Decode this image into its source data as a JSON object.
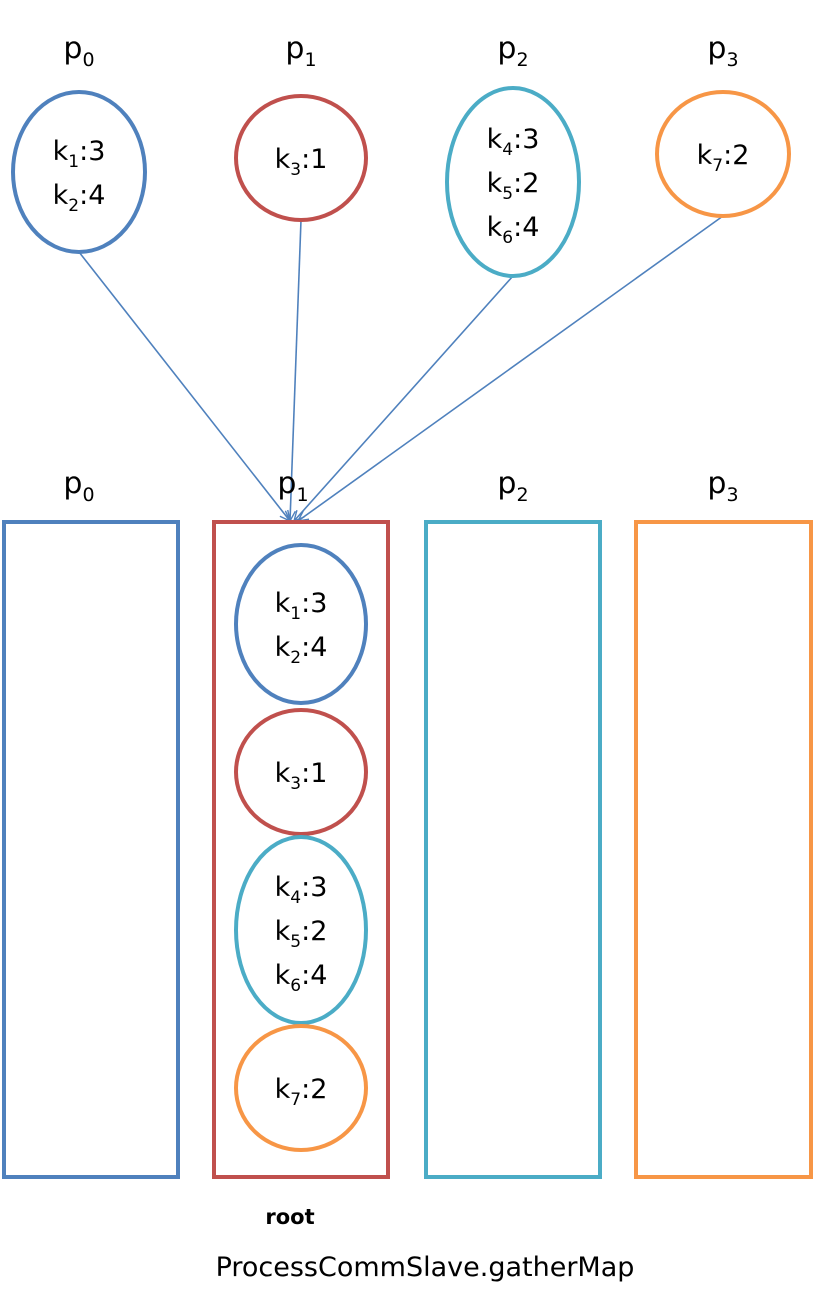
{
  "colors": {
    "p0": "#4f81bd",
    "p1": "#c0504d",
    "p2": "#4bacc6",
    "p3": "#f79646",
    "arrow": "#4f81bd"
  },
  "top_row": [
    {
      "label": "p",
      "sub": "0",
      "entries": [
        {
          "k": "1",
          "v": "3"
        },
        {
          "k": "2",
          "v": "4"
        }
      ]
    },
    {
      "label": "p",
      "sub": "1",
      "entries": [
        {
          "k": "3",
          "v": "1"
        }
      ]
    },
    {
      "label": "p",
      "sub": "2",
      "entries": [
        {
          "k": "4",
          "v": "3"
        },
        {
          "k": "5",
          "v": "2"
        },
        {
          "k": "6",
          "v": "4"
        }
      ]
    },
    {
      "label": "p",
      "sub": "3",
      "entries": [
        {
          "k": "7",
          "v": "2"
        }
      ]
    }
  ],
  "bottom_row": [
    {
      "label": "p",
      "sub": "0"
    },
    {
      "label": "p",
      "sub": "1"
    },
    {
      "label": "p",
      "sub": "2"
    },
    {
      "label": "p",
      "sub": "3"
    }
  ],
  "gathered": [
    {
      "from": 0,
      "entries": [
        {
          "k": "1",
          "v": "3"
        },
        {
          "k": "2",
          "v": "4"
        }
      ]
    },
    {
      "from": 1,
      "entries": [
        {
          "k": "3",
          "v": "1"
        }
      ]
    },
    {
      "from": 2,
      "entries": [
        {
          "k": "4",
          "v": "3"
        },
        {
          "k": "5",
          "v": "2"
        },
        {
          "k": "6",
          "v": "4"
        }
      ]
    },
    {
      "from": 3,
      "entries": [
        {
          "k": "7",
          "v": "2"
        }
      ]
    }
  ],
  "root_label": "root",
  "caption": "ProcessCommSlave.gatherMap"
}
